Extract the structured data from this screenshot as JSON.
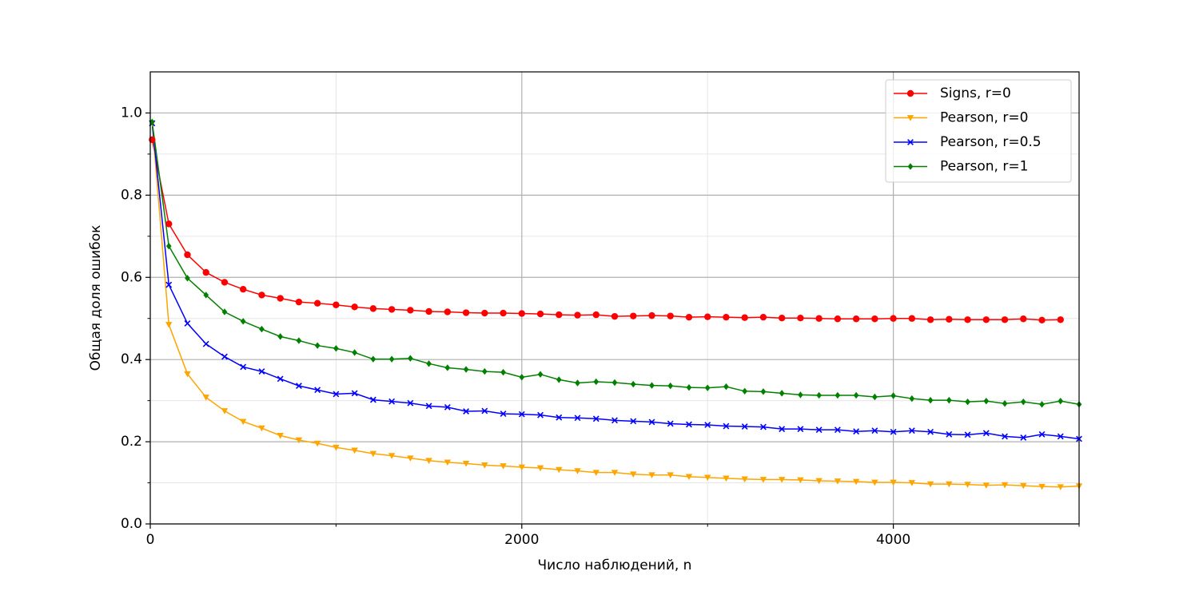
{
  "chart_data": {
    "type": "line",
    "xlabel": "Число наблюдений, n",
    "ylabel": "Общая доля ошибок",
    "x": [
      10,
      100,
      200,
      300,
      400,
      500,
      600,
      700,
      800,
      900,
      1000,
      1100,
      1200,
      1300,
      1400,
      1500,
      1600,
      1700,
      1800,
      1900,
      2000,
      2100,
      2200,
      2300,
      2400,
      2500,
      2600,
      2700,
      2800,
      2900,
      3000,
      3100,
      3200,
      3300,
      3400,
      3500,
      3600,
      3700,
      3800,
      3900,
      4000,
      4100,
      4200,
      4300,
      4400,
      4500,
      4600,
      4700,
      4800,
      4900,
      5000
    ],
    "series": [
      {
        "name": "Signs, r=0",
        "color": "#ff0000",
        "marker": "circle",
        "values": [
          0.935,
          0.73,
          0.655,
          0.612,
          0.588,
          0.571,
          0.557,
          0.549,
          0.54,
          0.537,
          0.533,
          0.528,
          0.524,
          0.522,
          0.52,
          0.517,
          0.516,
          0.514,
          0.513,
          0.513,
          0.512,
          0.511,
          0.509,
          0.508,
          0.509,
          0.505,
          0.506,
          0.507,
          0.506,
          0.503,
          0.504,
          0.503,
          0.502,
          0.503,
          0.501,
          0.501,
          0.5,
          0.499,
          0.499,
          0.499,
          0.5,
          0.5,
          0.497,
          0.498,
          0.497,
          0.497,
          0.497,
          0.499,
          0.496,
          0.497,
          null
        ]
      },
      {
        "name": "Pearson, r=0",
        "color": "#ffa500",
        "marker": "triangle-down",
        "values": [
          0.975,
          0.485,
          0.365,
          0.308,
          0.275,
          0.249,
          0.233,
          0.215,
          0.204,
          0.196,
          0.186,
          0.179,
          0.171,
          0.166,
          0.16,
          0.154,
          0.15,
          0.147,
          0.143,
          0.141,
          0.138,
          0.136,
          0.132,
          0.129,
          0.125,
          0.125,
          0.121,
          0.119,
          0.119,
          0.115,
          0.113,
          0.111,
          0.109,
          0.108,
          0.108,
          0.107,
          0.105,
          0.104,
          0.103,
          0.101,
          0.101,
          0.1,
          0.097,
          0.097,
          0.096,
          0.094,
          0.095,
          0.093,
          0.091,
          0.09,
          0.092
        ]
      },
      {
        "name": "Pearson, r=0.5",
        "color": "#0000ff",
        "marker": "x",
        "values": [
          0.975,
          0.582,
          0.488,
          0.438,
          0.407,
          0.382,
          0.371,
          0.353,
          0.336,
          0.326,
          0.316,
          0.318,
          0.302,
          0.298,
          0.294,
          0.287,
          0.284,
          0.274,
          0.275,
          0.268,
          0.267,
          0.265,
          0.259,
          0.258,
          0.256,
          0.252,
          0.25,
          0.248,
          0.244,
          0.242,
          0.241,
          0.238,
          0.237,
          0.236,
          0.231,
          0.231,
          0.229,
          0.229,
          0.225,
          0.227,
          0.224,
          0.227,
          0.224,
          0.218,
          0.217,
          0.221,
          0.213,
          0.21,
          0.218,
          0.213,
          0.207
        ]
      },
      {
        "name": "Pearson, r=1",
        "color": "#008000",
        "marker": "diamond",
        "values": [
          0.978,
          0.676,
          0.598,
          0.557,
          0.516,
          0.493,
          0.474,
          0.456,
          0.446,
          0.434,
          0.427,
          0.417,
          0.401,
          0.401,
          0.403,
          0.39,
          0.38,
          0.376,
          0.371,
          0.369,
          0.357,
          0.364,
          0.351,
          0.343,
          0.346,
          0.344,
          0.34,
          0.337,
          0.336,
          0.332,
          0.331,
          0.334,
          0.323,
          0.322,
          0.318,
          0.314,
          0.313,
          0.313,
          0.313,
          0.309,
          0.312,
          0.305,
          0.301,
          0.301,
          0.297,
          0.299,
          0.293,
          0.297,
          0.291,
          0.299,
          0.291
        ]
      }
    ],
    "xlim": [
      0,
      5000
    ],
    "xticks": [
      0,
      2000,
      4000
    ],
    "xminorticks": [
      1000,
      3000,
      5000
    ],
    "ylim": [
      0,
      1.1
    ],
    "yticks": [
      {
        "value": 0,
        "label": "0.0"
      },
      0.2,
      0.4,
      0.6,
      0.8,
      {
        "value": 1,
        "label": "1.0"
      }
    ],
    "yminorticks": [
      0.1,
      0.3,
      0.5,
      0.7,
      0.9
    ],
    "grid": true,
    "legend": "upper right"
  }
}
